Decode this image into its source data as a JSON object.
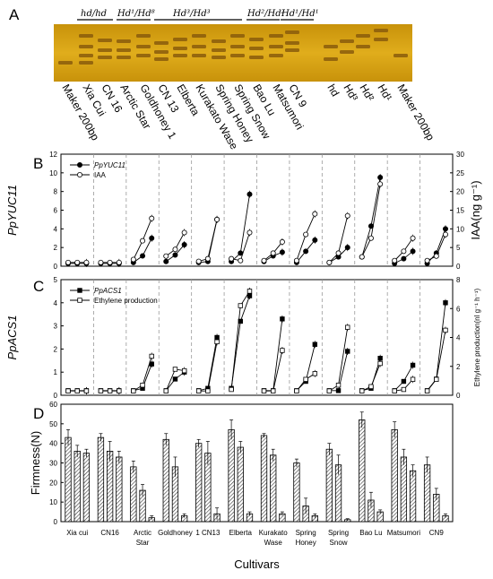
{
  "panels": {
    "a": "A",
    "b": "B",
    "c": "C",
    "d": "D"
  },
  "gel": {
    "genotype_labels": [
      "hd/hd",
      "Hd¹/Hd⁸",
      "Hd³/Hd³",
      "Hd²/Hd²",
      "Hd¹/Hd¹"
    ],
    "lanes": [
      "Maker 200bp",
      "Xia Cui",
      "CN 16",
      "Arctic Star",
      "Goldhoney 1",
      "CN 13",
      "Elberta",
      "Kurakato Wase",
      "Spring Honey",
      "Spring Snow",
      "Bao Lu",
      "Matsumori",
      "CN 9",
      "hd",
      "Hd³",
      "Hd²",
      "Hd¹",
      "Maker 200bp"
    ],
    "colors": {
      "gel_bg": "#d8a315",
      "band": "#8a5c0c"
    }
  },
  "chart_data": [
    {
      "type": "line",
      "panel": "B",
      "ylabel": "PpYUC11",
      "y2label": "IAA(ng g⁻¹)",
      "ylim": [
        0,
        12
      ],
      "yticks": [
        "0",
        "2",
        "4",
        "6",
        "8",
        "10",
        "12"
      ],
      "y2lim": [
        0,
        30
      ],
      "y2ticks": [
        "0",
        "5",
        "10",
        "15",
        "20",
        "25",
        "30"
      ],
      "series": [
        {
          "name": "PpYUC11",
          "marker": "filled-circle",
          "axis": "left",
          "values": [
            [
              0.3,
              0.3,
              0.3
            ],
            [
              0.3,
              0.3,
              0.3
            ],
            [
              0.4,
              1.1,
              3.0
            ],
            [
              0.5,
              1.2,
              2.3
            ],
            [
              0.4,
              0.5,
              5.0
            ],
            [
              0.5,
              1.4,
              7.7
            ],
            [
              0.5,
              1.1,
              1.5
            ],
            [
              0.4,
              1.6,
              2.8
            ],
            [
              0.4,
              1.0,
              2.0
            ],
            [
              1.0,
              4.3,
              9.5
            ],
            [
              0.3,
              0.8,
              1.6
            ],
            [
              0.3,
              1.4,
              4.0
            ]
          ]
        },
        {
          "name": "IAA",
          "marker": "open-circle",
          "axis": "right",
          "values": [
            [
              1.0,
              1.0,
              1.0
            ],
            [
              1.0,
              1.0,
              1.0
            ],
            [
              1.8,
              6.8,
              12.8
            ],
            [
              2.7,
              4.5,
              9.0
            ],
            [
              1.3,
              2.0,
              12.5
            ],
            [
              2.0,
              1.5,
              9.0
            ],
            [
              1.5,
              3.5,
              6.5
            ],
            [
              1.5,
              8.5,
              14.0
            ],
            [
              1.0,
              3.5,
              13.5
            ],
            [
              2.5,
              7.5,
              22.0
            ],
            [
              1.5,
              4.0,
              7.5
            ],
            [
              1.5,
              2.7,
              8.5
            ]
          ]
        }
      ]
    },
    {
      "type": "line",
      "panel": "C",
      "ylabel": "PpACS1",
      "y2label": "Ethylene production(nl g⁻¹ h⁻¹)",
      "ylim": [
        0,
        5
      ],
      "yticks": [
        "0",
        "1",
        "2",
        "3",
        "4",
        "5"
      ],
      "y2lim": [
        0,
        8
      ],
      "y2ticks": [
        "0",
        "2",
        "4",
        "6",
        "8"
      ],
      "series": [
        {
          "name": "PpACS1",
          "marker": "filled-square",
          "axis": "left",
          "values": [
            [
              0.2,
              0.2,
              0.2
            ],
            [
              0.2,
              0.2,
              0.2
            ],
            [
              0.2,
              0.3,
              1.35
            ],
            [
              0.2,
              0.7,
              1.0
            ],
            [
              0.2,
              0.3,
              2.5
            ],
            [
              0.3,
              3.2,
              4.3
            ],
            [
              0.2,
              0.2,
              3.3
            ],
            [
              0.2,
              0.6,
              2.2
            ],
            [
              0.2,
              0.2,
              1.9
            ],
            [
              0.2,
              0.3,
              1.6
            ],
            [
              0.2,
              0.6,
              1.3
            ],
            [
              0.2,
              0.7,
              4.0
            ]
          ]
        },
        {
          "name": "Ethylene production",
          "marker": "open-square",
          "axis": "right",
          "values": [
            [
              0.3,
              0.3,
              0.3
            ],
            [
              0.3,
              0.3,
              0.3
            ],
            [
              0.3,
              0.7,
              2.7
            ],
            [
              0.3,
              1.8,
              1.7
            ],
            [
              0.3,
              0.3,
              3.7
            ],
            [
              0.4,
              6.2,
              7.2
            ],
            [
              0.3,
              0.3,
              3.1
            ],
            [
              0.3,
              1.1,
              1.5
            ],
            [
              0.3,
              0.7,
              4.7
            ],
            [
              0.3,
              0.6,
              2.2
            ],
            [
              0.3,
              0.4,
              1.1
            ],
            [
              0.3,
              1.1,
              4.5
            ]
          ]
        }
      ]
    },
    {
      "type": "bar",
      "panel": "D",
      "ylabel": "Firmness(N)",
      "xlabel": "Cultivars",
      "ylim": [
        0,
        60
      ],
      "yticks": [
        "0",
        "10",
        "20",
        "30",
        "40",
        "50",
        "60"
      ],
      "categories": [
        "Xia cui",
        "CN16",
        "Arctic Star",
        "Goldhoney 1",
        "CN13",
        "Elberta",
        "Kurakato Wase",
        "Spring Honey",
        "Spring Snow",
        "Bao Lu",
        "Matsumori",
        "CN9"
      ],
      "category_labels": [
        [
          "Xia cui"
        ],
        [
          "CN16"
        ],
        [
          "Arctic",
          "Star"
        ],
        [
          "Goldhoney"
        ],
        [
          "1 CN13"
        ],
        [
          "Elberta"
        ],
        [
          "Kurakato",
          "Wase"
        ],
        [
          "Spring",
          "Honey"
        ],
        [
          "Spring",
          "Snow"
        ],
        [
          "Bao Lu"
        ],
        [
          "Matsumori"
        ],
        [
          "CN9"
        ]
      ],
      "values": [
        [
          43,
          36,
          35
        ],
        [
          43,
          36,
          33
        ],
        [
          28,
          16,
          2
        ],
        [
          42,
          28,
          3
        ],
        [
          40,
          35,
          4
        ],
        [
          47,
          38,
          4
        ],
        [
          44,
          34,
          4
        ],
        [
          30,
          8,
          3
        ],
        [
          37,
          29,
          1
        ],
        [
          52,
          11,
          5
        ],
        [
          47,
          33,
          26
        ],
        [
          29,
          14,
          3
        ]
      ],
      "errors": [
        [
          4,
          3,
          2
        ],
        [
          2,
          5,
          3
        ],
        [
          3,
          3,
          1
        ],
        [
          3,
          5,
          1
        ],
        [
          2,
          6,
          3
        ],
        [
          5,
          3,
          1
        ],
        [
          1,
          3,
          1
        ],
        [
          2,
          4,
          1
        ],
        [
          3,
          5,
          0.5
        ],
        [
          4,
          4,
          1
        ],
        [
          4,
          4,
          3
        ],
        [
          4,
          3,
          1
        ]
      ]
    }
  ]
}
